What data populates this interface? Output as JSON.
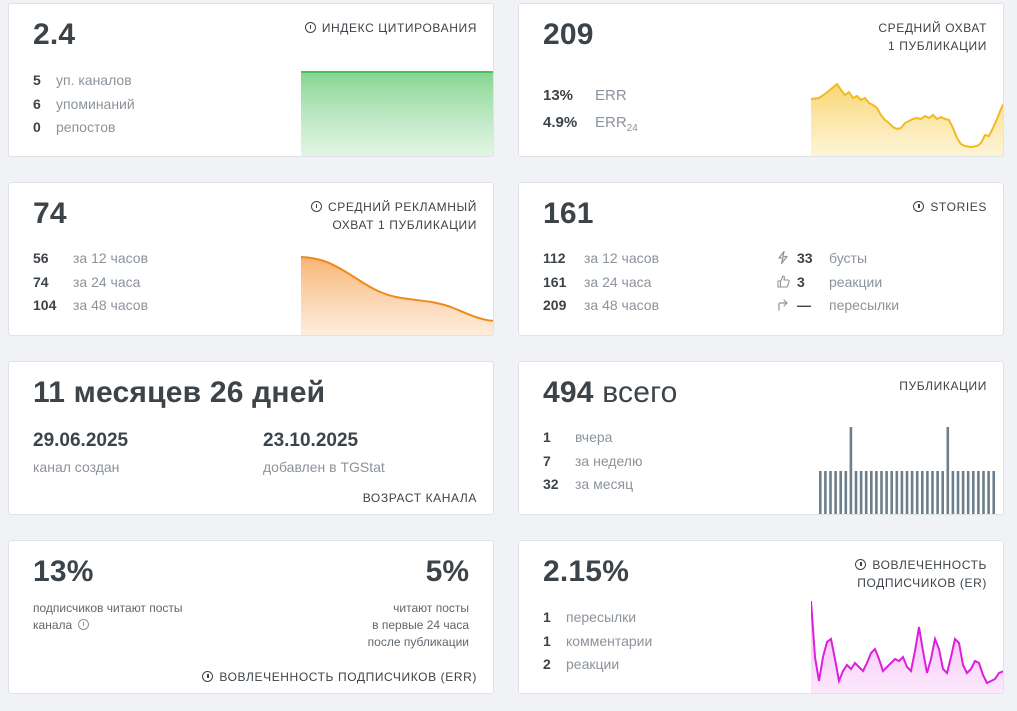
{
  "citation": {
    "value": "2.4",
    "label": "Индекс цитирования",
    "stats": [
      {
        "n": "5",
        "t": "уп. каналов"
      },
      {
        "n": "6",
        "t": "упоминаний"
      },
      {
        "n": "0",
        "t": "репостов"
      }
    ],
    "color": "#5ac46a"
  },
  "reach": {
    "value": "209",
    "label_line1": "Средний охват",
    "label_line2": "1 публикации",
    "err_value": "13%",
    "err_label": "ERR",
    "err24_value": "4.9%",
    "err24_label": "ERR",
    "err24_sub": "24",
    "color": "#f5c030"
  },
  "ad_reach": {
    "value": "74",
    "label_line1": "Средний рекламный",
    "label_line2": "охват 1 публикации",
    "stats": [
      {
        "n": "56",
        "t": "за 12 часов"
      },
      {
        "n": "74",
        "t": "за 24 часа"
      },
      {
        "n": "104",
        "t": "за 48 часов"
      }
    ],
    "color": "#f0952a"
  },
  "stories": {
    "value": "161",
    "label": "Stories",
    "stats": [
      {
        "n": "112",
        "t": "за 12 часов"
      },
      {
        "n": "161",
        "t": "за 24 часа"
      },
      {
        "n": "209",
        "t": "за 48 часов"
      }
    ],
    "extra": [
      {
        "icon": "lightning-icon",
        "n": "33",
        "t": "бусты"
      },
      {
        "icon": "thumbs-up-icon",
        "n": "3",
        "t": "реакции"
      },
      {
        "icon": "share-arrow-icon",
        "n": "—",
        "t": "пересылки"
      }
    ]
  },
  "age": {
    "value": "11 месяцев 26 дней",
    "created_date": "29.06.2025",
    "created_label": "канал создан",
    "added_date": "23.10.2025",
    "added_label": "добавлен в TGStat",
    "label": "Возраст канала"
  },
  "posts": {
    "value_num": "494",
    "value_unit": "всего",
    "label": "Публикации",
    "stats": [
      {
        "n": "1",
        "t": "вчера"
      },
      {
        "n": "7",
        "t": "за неделю"
      },
      {
        "n": "32",
        "t": "за месяц"
      }
    ],
    "color": "#6d7e8c"
  },
  "err_card": {
    "left_value": "13%",
    "left_text_line1": "подписчиков читают посты",
    "left_text_line2": "канала",
    "right_value": "5%",
    "right_text_line1": "читают посты",
    "right_text_line2": "в первые 24 часа",
    "right_text_line3": "после публикации",
    "label": "Вовлеченность подписчиков (ERR)"
  },
  "er_card": {
    "value": "2.15%",
    "label_line1": "Вовлеченность",
    "label_line2": "подписчиков (ER)",
    "stats": [
      {
        "n": "1",
        "t": "пересылки"
      },
      {
        "n": "1",
        "t": "комментарии"
      },
      {
        "n": "2",
        "t": "реакции"
      }
    ],
    "color": "#e020e0"
  }
}
